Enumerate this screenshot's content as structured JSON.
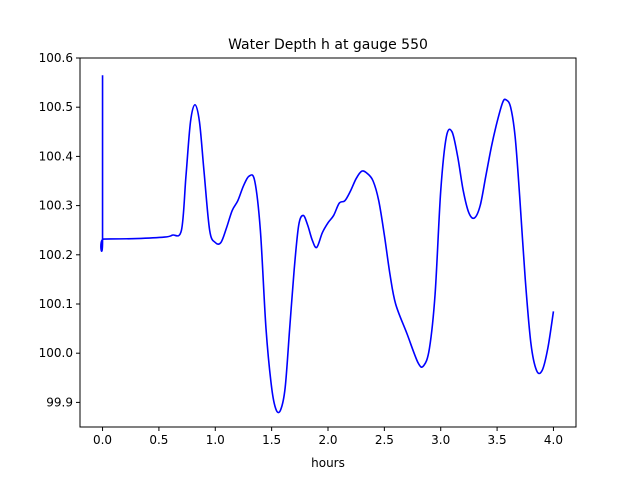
{
  "chart_data": {
    "type": "line",
    "title": "Water Depth h at gauge 550",
    "xlabel": "hours",
    "ylabel": "",
    "xlim": [
      -0.2,
      4.2
    ],
    "ylim": [
      99.85,
      100.6
    ],
    "x_ticks": [
      0.0,
      0.5,
      1.0,
      1.5,
      2.0,
      2.5,
      3.0,
      3.5,
      4.0
    ],
    "x_tick_labels": [
      "0.0",
      "0.5",
      "1.0",
      "1.5",
      "2.0",
      "2.5",
      "3.0",
      "3.5",
      "4.0"
    ],
    "y_ticks": [
      99.9,
      100.0,
      100.1,
      100.2,
      100.3,
      100.4,
      100.5,
      100.6
    ],
    "y_tick_labels": [
      "99.9",
      "100.0",
      "100.1",
      "100.2",
      "100.3",
      "100.4",
      "100.5",
      "100.6"
    ],
    "grid": false,
    "color": "#0000ff",
    "series": [
      {
        "x": [
          0.0,
          0.0,
          0.01,
          0.3,
          0.55,
          0.62,
          0.7,
          0.74,
          0.78,
          0.82,
          0.86,
          0.9,
          0.95,
          1.0,
          1.05,
          1.1,
          1.15,
          1.2,
          1.25,
          1.3,
          1.35,
          1.4,
          1.45,
          1.5,
          1.54,
          1.58,
          1.62,
          1.66,
          1.7,
          1.74,
          1.78,
          1.82,
          1.86,
          1.9,
          1.95,
          2.0,
          2.05,
          2.1,
          2.15,
          2.2,
          2.25,
          2.3,
          2.35,
          2.4,
          2.45,
          2.5,
          2.55,
          2.6,
          2.7,
          2.8,
          2.85,
          2.9,
          2.95,
          3.0,
          3.05,
          3.1,
          3.15,
          3.2,
          3.25,
          3.3,
          3.35,
          3.4,
          3.45,
          3.5,
          3.55,
          3.58,
          3.62,
          3.66,
          3.7,
          3.75,
          3.8,
          3.85,
          3.9,
          3.95,
          4.0
        ],
        "y": [
          100.565,
          100.232,
          100.232,
          100.233,
          100.236,
          100.24,
          100.25,
          100.36,
          100.47,
          100.505,
          100.47,
          100.37,
          100.25,
          100.225,
          100.225,
          100.255,
          100.29,
          100.31,
          100.34,
          100.36,
          100.35,
          100.25,
          100.05,
          99.93,
          99.885,
          99.885,
          99.93,
          100.05,
          100.17,
          100.26,
          100.28,
          100.26,
          100.23,
          100.215,
          100.245,
          100.265,
          100.28,
          100.305,
          100.31,
          100.33,
          100.355,
          100.37,
          100.365,
          100.35,
          100.31,
          100.24,
          100.16,
          100.1,
          100.04,
          99.98,
          99.975,
          100.01,
          100.12,
          100.33,
          100.44,
          100.45,
          100.4,
          100.33,
          100.285,
          100.275,
          100.3,
          100.36,
          100.42,
          100.47,
          100.51,
          100.515,
          100.5,
          100.44,
          100.32,
          100.15,
          100.02,
          99.965,
          99.965,
          100.01,
          100.085
        ]
      }
    ]
  }
}
